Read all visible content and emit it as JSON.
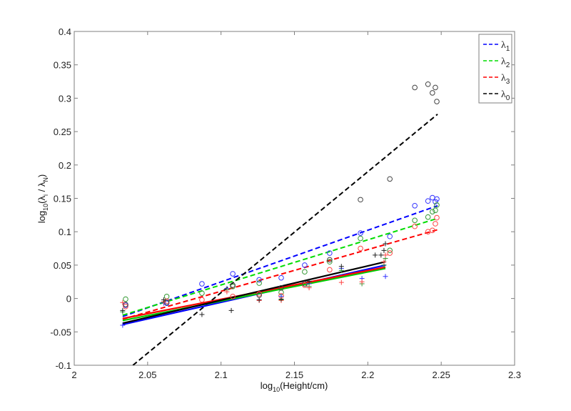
{
  "chart_data": {
    "type": "scatter",
    "title": "",
    "xlabel": "log10(Height/cm)",
    "xlabel_parts": {
      "pre": "log",
      "sub": "10",
      "post": "(Height/cm)"
    },
    "ylabel": "log10(λi / λN)",
    "ylabel_parts": {
      "pre": "log",
      "sub": "10",
      "mid": "(λ",
      "sub2": "i",
      "mid2": " / λ",
      "sub3": "N",
      "post": ")"
    },
    "xlim": [
      2,
      2.3
    ],
    "ylim": [
      -0.1,
      0.4
    ],
    "xticks": [
      2,
      2.05,
      2.1,
      2.15,
      2.2,
      2.25,
      2.3
    ],
    "xtick_labels": [
      "2",
      "2.05",
      "2.1",
      "2.15",
      "2.2",
      "2.25",
      "2.3"
    ],
    "yticks": [
      -0.1,
      -0.05,
      0,
      0.05,
      0.1,
      0.15,
      0.2,
      0.25,
      0.3,
      0.35,
      0.4
    ],
    "ytick_labels": [
      "-0.1",
      "-0.05",
      "0",
      "0.05",
      "0.1",
      "0.15",
      "0.2",
      "0.25",
      "0.3",
      "0.35",
      "0.4"
    ],
    "grid": false,
    "legend_position": "upper right",
    "legend": [
      {
        "label": "λ",
        "sub": "1",
        "color": "#0000ff",
        "style": "dashed"
      },
      {
        "label": "λ",
        "sub": "2",
        "color": "#00dd00",
        "style": "dashed"
      },
      {
        "label": "λ",
        "sub": "3",
        "color": "#ff0000",
        "style": "dashed"
      },
      {
        "label": "λ",
        "sub": "0",
        "color": "#000000",
        "style": "dashed"
      }
    ],
    "series": [
      {
        "name": "λ1 (circles)",
        "color": "#3333ff",
        "marker": "o",
        "points": [
          [
            2.035,
            -0.01
          ],
          [
            2.063,
            -0.007
          ],
          [
            2.087,
            0.022
          ],
          [
            2.108,
            0.037
          ],
          [
            2.126,
            0.028
          ],
          [
            2.141,
            0.031
          ],
          [
            2.157,
            0.05
          ],
          [
            2.174,
            0.068
          ],
          [
            2.195,
            0.098
          ],
          [
            2.215,
            0.093
          ],
          [
            2.232,
            0.139
          ],
          [
            2.241,
            0.146
          ],
          [
            2.244,
            0.151
          ],
          [
            2.246,
            0.145
          ],
          [
            2.247,
            0.149
          ]
        ],
        "fit": {
          "style": "dashed",
          "x": [
            2.033,
            2.2475
          ],
          "y": [
            -0.027,
            0.139
          ]
        }
      },
      {
        "name": "λ2 (circles)",
        "color": "#339933",
        "marker": "o",
        "points": [
          [
            2.035,
            -0.001
          ],
          [
            2.063,
            0.003
          ],
          [
            2.087,
            0.008
          ],
          [
            2.108,
            0.018
          ],
          [
            2.126,
            0.023
          ],
          [
            2.141,
            0.009
          ],
          [
            2.157,
            0.04
          ],
          [
            2.174,
            0.055
          ],
          [
            2.195,
            0.09
          ],
          [
            2.215,
            0.072
          ],
          [
            2.232,
            0.117
          ],
          [
            2.241,
            0.122
          ],
          [
            2.244,
            0.13
          ],
          [
            2.246,
            0.132
          ],
          [
            2.247,
            0.14
          ]
        ],
        "fit": {
          "style": "dashed",
          "x": [
            2.033,
            2.2475
          ],
          "y": [
            -0.025,
            0.12
          ]
        }
      },
      {
        "name": "λ3 (circles)",
        "color": "#ff4444",
        "marker": "o",
        "points": [
          [
            2.035,
            -0.012
          ],
          [
            2.063,
            -0.004
          ],
          [
            2.087,
            -0.002
          ],
          [
            2.108,
            0.003
          ],
          [
            2.126,
            0.007
          ],
          [
            2.141,
            0.004
          ],
          [
            2.157,
            0.02
          ],
          [
            2.174,
            0.043
          ],
          [
            2.195,
            0.075
          ],
          [
            2.215,
            0.068
          ],
          [
            2.232,
            0.108
          ],
          [
            2.241,
            0.1
          ],
          [
            2.244,
            0.102
          ],
          [
            2.246,
            0.112
          ],
          [
            2.247,
            0.121
          ]
        ],
        "fit": {
          "style": "dashed",
          "x": [
            2.033,
            2.2475
          ],
          "y": [
            -0.031,
            0.103
          ]
        }
      },
      {
        "name": "λ0 (circles)",
        "color": "#444444",
        "marker": "o",
        "points": [
          [
            2.035,
            -0.009
          ],
          [
            2.063,
            -0.006
          ],
          [
            2.108,
            0.02
          ],
          [
            2.126,
            0.005
          ],
          [
            2.141,
            0.016
          ],
          [
            2.157,
            0.022
          ],
          [
            2.174,
            0.058
          ],
          [
            2.195,
            0.148
          ],
          [
            2.215,
            0.179
          ],
          [
            2.232,
            0.316
          ],
          [
            2.241,
            0.321
          ],
          [
            2.244,
            0.308
          ],
          [
            2.246,
            0.316
          ],
          [
            2.247,
            0.295
          ]
        ],
        "fit": {
          "style": "dashed",
          "x": [
            2.04,
            2.2475
          ],
          "y": [
            -0.1,
            0.276
          ]
        }
      },
      {
        "name": "λ1 (plus)",
        "color": "#3333ff",
        "marker": "+",
        "points": [
          [
            2.033,
            -0.04
          ],
          [
            2.061,
            -0.007
          ],
          [
            2.104,
            0.015
          ],
          [
            2.141,
            0.003
          ],
          [
            2.16,
            0.022
          ],
          [
            2.182,
            0.045
          ],
          [
            2.196,
            0.03
          ],
          [
            2.211,
            0.05
          ],
          [
            2.212,
            0.033
          ]
        ],
        "fit": {
          "style": "solid",
          "x": [
            2.033,
            2.212
          ],
          "y": [
            -0.039,
            0.05
          ]
        }
      },
      {
        "name": "λ2 (plus)",
        "color": "#339933",
        "marker": "+",
        "points": [
          [
            2.033,
            -0.02
          ],
          [
            2.061,
            -0.005
          ],
          [
            2.104,
            0.013
          ],
          [
            2.141,
            -0.002
          ],
          [
            2.16,
            0.018
          ],
          [
            2.182,
            0.042
          ],
          [
            2.196,
            0.022
          ],
          [
            2.211,
            0.05
          ],
          [
            2.212,
            0.06
          ]
        ],
        "fit": {
          "style": "solid",
          "x": [
            2.033,
            2.212
          ],
          "y": [
            -0.033,
            0.045
          ]
        }
      },
      {
        "name": "λ3 (plus)",
        "color": "#ff4444",
        "marker": "+",
        "points": [
          [
            2.033,
            -0.006
          ],
          [
            2.061,
            -0.005
          ],
          [
            2.104,
            0.01
          ],
          [
            2.126,
            -0.003
          ],
          [
            2.141,
            -0.003
          ],
          [
            2.16,
            0.016
          ],
          [
            2.182,
            0.024
          ],
          [
            2.196,
            0.025
          ],
          [
            2.211,
            0.055
          ],
          [
            2.212,
            0.065
          ]
        ],
        "fit": {
          "style": "solid",
          "x": [
            2.033,
            2.212
          ],
          "y": [
            -0.03,
            0.047
          ]
        }
      },
      {
        "name": "λ0 (plus)",
        "color": "#222222",
        "marker": "+",
        "points": [
          [
            2.033,
            -0.018
          ],
          [
            2.061,
            -0.002
          ],
          [
            2.087,
            -0.024
          ],
          [
            2.107,
            -0.018
          ],
          [
            2.126,
            -0.002
          ],
          [
            2.141,
            -0.001
          ],
          [
            2.16,
            0.026
          ],
          [
            2.182,
            0.048
          ],
          [
            2.205,
            0.065
          ],
          [
            2.209,
            0.065
          ],
          [
            2.211,
            0.072
          ],
          [
            2.212,
            0.082
          ]
        ],
        "fit": {
          "style": "solid",
          "x": [
            2.033,
            2.212
          ],
          "y": [
            -0.037,
            0.055
          ]
        }
      }
    ]
  }
}
